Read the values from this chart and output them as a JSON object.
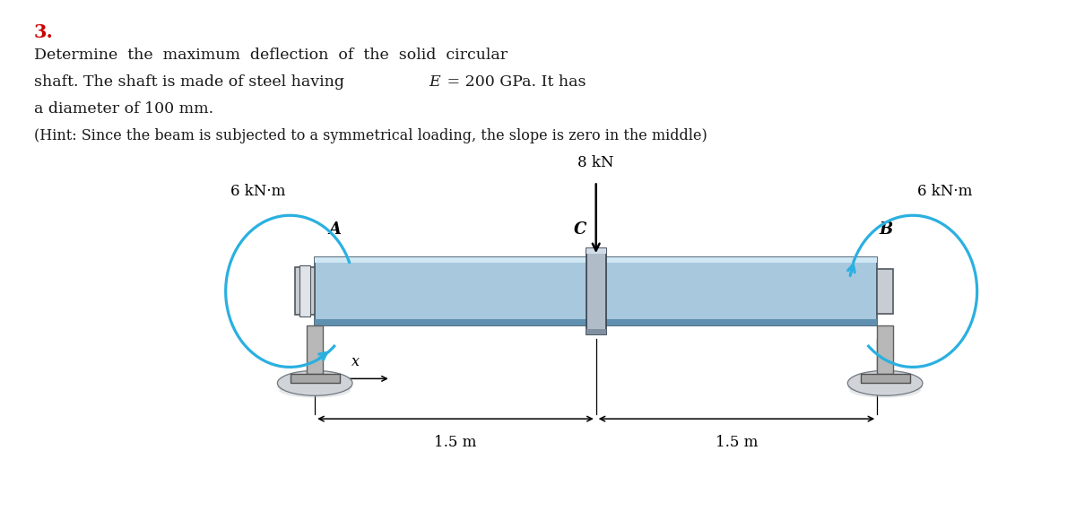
{
  "title_number": "3.",
  "title_number_color": "#cc0000",
  "line1": "Determine  the  maximum  deflection  of  the  solid  circular",
  "line2a": "shaft. The shaft is made of steel having ",
  "line2b": "E",
  "line2c": " = 200 GPa. It has",
  "line3": "a diameter of 100 mm.",
  "hint": "(Hint: Since the beam is subjected to a symmetrical loading, the slope is zero in the middle)",
  "bg": "#ffffff",
  "shaft_fc": "#a8c8de",
  "shaft_ec": "#4a6070",
  "shaft_hi": "#d0e8f4",
  "shaft_sh": "#6090b0",
  "hub_fc": "#c8cdd4",
  "hub_ec": "#505860",
  "col_fc": "#b8b8b8",
  "col_ec": "#606060",
  "base_fc": "#a8a8a8",
  "base_ec": "#505050",
  "disk_fc": "#d8dce0",
  "disk_ec": "#707880",
  "c_hub_fc": "#b0bcc8",
  "c_hub_ec": "#404858",
  "moment_color": "#2ab0e0",
  "force_color": "#000000",
  "text_color": "#1a1a1a",
  "label_A": "A",
  "label_B": "B",
  "label_C": "C",
  "moment_L": "6 kN·m",
  "moment_R": "6 kN·m",
  "force_lbl": "8 kN",
  "dim1": "1.5 m",
  "dim2": "1.5 m",
  "x_lbl": "x"
}
